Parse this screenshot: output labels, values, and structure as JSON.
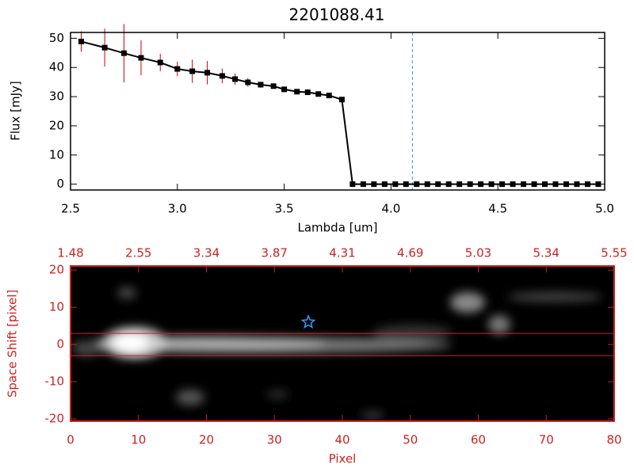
{
  "chart_data": [
    {
      "type": "line",
      "title": "2201088.41",
      "x_label": "Lambda [um]",
      "y_label": "Flux [mJy]",
      "x": [
        2.55,
        2.66,
        2.75,
        2.83,
        2.92,
        3.0,
        3.07,
        3.14,
        3.21,
        3.27,
        3.33,
        3.39,
        3.45,
        3.5,
        3.56,
        3.61,
        3.66,
        3.71,
        3.77,
        3.82,
        3.87,
        3.92,
        3.97,
        4.02,
        4.07,
        4.12,
        4.17,
        4.22,
        4.27,
        4.32,
        4.37,
        4.42,
        4.47,
        4.52,
        4.57,
        4.62,
        4.67,
        4.72,
        4.77,
        4.82,
        4.87,
        4.92,
        4.97
      ],
      "values": [
        48.9,
        46.8,
        44.9,
        43.3,
        41.7,
        39.5,
        38.7,
        38.2,
        37.1,
        36.0,
        34.9,
        34.1,
        33.6,
        32.5,
        31.7,
        31.5,
        30.9,
        30.4,
        29.0,
        0,
        0,
        0,
        0,
        0,
        0,
        0,
        0,
        0,
        0,
        0,
        0,
        0,
        0,
        0,
        0,
        0,
        0,
        0,
        0,
        0,
        0,
        0,
        0
      ],
      "errors": [
        3.5,
        6.5,
        10,
        6,
        3,
        2.5,
        4,
        4,
        2.5,
        2,
        1.5,
        1,
        0.8,
        0.6,
        0.5,
        0.5,
        0.5,
        0.5,
        0.5,
        0,
        0,
        0,
        0,
        0,
        0,
        0,
        0,
        0,
        0,
        0,
        0,
        0,
        0,
        0,
        0,
        0,
        0,
        0,
        0,
        0,
        0,
        0,
        0
      ],
      "color": "#000000",
      "error_color": "#cc0000",
      "vline": 4.1,
      "vline_color": "#3399cc",
      "xlim": [
        2.5,
        5.0
      ],
      "ylim": [
        -2,
        52
      ],
      "xticks": [
        2.5,
        {
          "value": 3,
          "label": "3.0"
        },
        3.5,
        {
          "value": 4,
          "label": "4.0"
        },
        4.5,
        {
          "value": 5,
          "label": "5.0"
        }
      ],
      "yticks": [
        0,
        10,
        20,
        30,
        40,
        50
      ]
    },
    {
      "type": "image",
      "x_label": "Pixel",
      "y_label": "Space Shift [pixel]",
      "color": "#cc2222",
      "xlim": [
        0,
        80
      ],
      "ylim": [
        -20.6,
        21.1
      ],
      "xticks": [
        0,
        10,
        20,
        30,
        40,
        50,
        60,
        70,
        80
      ],
      "x2ticks": [
        {
          "value": 0,
          "label": "1.48"
        },
        {
          "value": 10,
          "label": "2.55"
        },
        {
          "value": 20,
          "label": "3.34"
        },
        {
          "value": 30,
          "label": "3.87"
        },
        {
          "value": 40,
          "label": "4.31"
        },
        {
          "value": 50,
          "label": "4.69"
        },
        {
          "value": 60,
          "label": "5.03"
        },
        {
          "value": 70,
          "label": "5.34"
        },
        {
          "value": 80,
          "label": "5.55"
        }
      ],
      "yticks": [
        -20,
        -10,
        0,
        10,
        20
      ],
      "hlines": [
        3,
        -3
      ],
      "star": {
        "x": 35,
        "y": 6,
        "color": "#3399ff"
      }
    }
  ]
}
